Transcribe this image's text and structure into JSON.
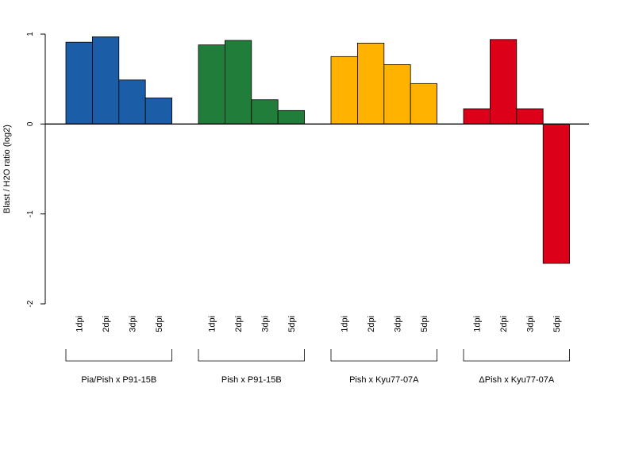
{
  "chart_data": {
    "type": "bar",
    "ylabel": "Blast / H2O ratio (log2)",
    "ylim": [
      -2,
      1
    ],
    "yticks": [
      -2,
      -1,
      0,
      1
    ],
    "grid": false,
    "bar_edge_color": "#000000",
    "groups": [
      {
        "name": "Pia/Pish x P91-15B",
        "color": "#1C5DA8",
        "categories": [
          "1dpi",
          "2dpi",
          "3dpi",
          "5dpi"
        ],
        "values": [
          0.91,
          0.97,
          0.49,
          0.29
        ]
      },
      {
        "name": "Pish x P91-15B",
        "color": "#217E3A",
        "categories": [
          "1dpi",
          "2dpi",
          "3dpi",
          "5dpi"
        ],
        "values": [
          0.88,
          0.93,
          0.27,
          0.15
        ]
      },
      {
        "name": "Pish x Kyu77-07A",
        "color": "#FFB300",
        "categories": [
          "1dpi",
          "2dpi",
          "3dpi",
          "5dpi"
        ],
        "values": [
          0.75,
          0.9,
          0.66,
          0.45
        ]
      },
      {
        "name": "ΔPish x Kyu77-07A",
        "color": "#DD0019",
        "categories": [
          "1dpi",
          "2dpi",
          "3dpi",
          "5dpi"
        ],
        "values": [
          0.17,
          0.94,
          0.17,
          -1.55
        ]
      }
    ]
  }
}
